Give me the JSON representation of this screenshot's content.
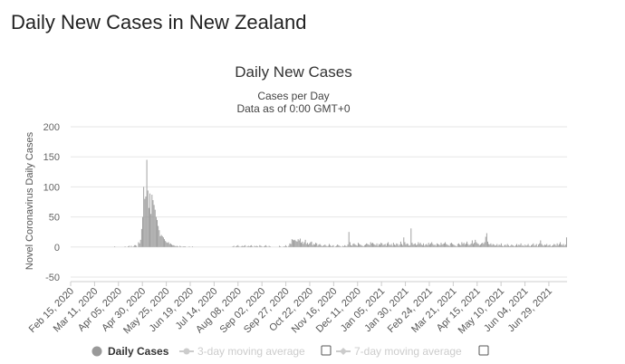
{
  "page": {
    "heading": "Daily New Cases in New Zealand"
  },
  "chart_data": {
    "type": "bar",
    "title": "Daily New Cases",
    "subtitle_line1": "Cases per Day",
    "subtitle_line2": "Data as of 0:00 GMT+0",
    "ylabel": "Novel Coronavirus Daily Cases",
    "xlabel": "",
    "ylim": [
      -50,
      200
    ],
    "yticks": [
      200,
      150,
      100,
      50,
      0,
      -50
    ],
    "grid": true,
    "legend_position": "bottom",
    "color": "#999999",
    "x_start": "2020-02-15",
    "x_end": "2021-07-18",
    "xtick_labels": [
      "Feb 15, 2020",
      "Mar 11, 2020",
      "Apr 05, 2020",
      "Apr 30, 2020",
      "May 25, 2020",
      "Jun 19, 2020",
      "Jul 14, 2020",
      "Aug 08, 2020",
      "Sep 02, 2020",
      "Sep 27, 2020",
      "Oct 22, 2020",
      "Nov 16, 2020",
      "Dec 11, 2020",
      "Jan 05, 2021",
      "Jan 30, 2021",
      "Feb 24, 2021",
      "Mar 21, 2021",
      "Apr 15, 2021",
      "May 10, 2021",
      "Jun 04, 2021",
      "Jun 29, 2021"
    ],
    "series": [
      {
        "name": "Daily Cases",
        "values": [
          0,
          0,
          0,
          0,
          0,
          0,
          0,
          0,
          0,
          0,
          0,
          0,
          0,
          0,
          0,
          0,
          0,
          0,
          0,
          0,
          0,
          0,
          0,
          0,
          0,
          0,
          0,
          0,
          0,
          0,
          0,
          0,
          0,
          0,
          0,
          0,
          0,
          0,
          0,
          0,
          0,
          0,
          1,
          0,
          0,
          0,
          0,
          0,
          0,
          0,
          0,
          0,
          1,
          0,
          0,
          1,
          2,
          0,
          2,
          0,
          1,
          3,
          3,
          2,
          0,
          8,
          6,
          12,
          30,
          50,
          100,
          80,
          84,
          145,
          94,
          65,
          89,
          55,
          87,
          78,
          70,
          62,
          50,
          45,
          35,
          28,
          18,
          20,
          18,
          16,
          13,
          10,
          8,
          7,
          8,
          5,
          6,
          4,
          3,
          3,
          2,
          1,
          2,
          1,
          0,
          2,
          1,
          0,
          1,
          1,
          1,
          0,
          0,
          0,
          1,
          0,
          0,
          1,
          0,
          0,
          0,
          0,
          0,
          0,
          0,
          0,
          0,
          0,
          0,
          0,
          0,
          0,
          0,
          0,
          0,
          0,
          0,
          0,
          0,
          0,
          0,
          0,
          0,
          0,
          0,
          0,
          0,
          0,
          0,
          0,
          0,
          0,
          0,
          0,
          0,
          0,
          1,
          2,
          0,
          1,
          2,
          3,
          1,
          0,
          1,
          2,
          1,
          2,
          3,
          0,
          1,
          2,
          1,
          2,
          3,
          1,
          0,
          2,
          1,
          2,
          1,
          0,
          3,
          2,
          1,
          0,
          1,
          2,
          3,
          1,
          0,
          2,
          1,
          0,
          0,
          0,
          0,
          0,
          0,
          0,
          0,
          2,
          1,
          0,
          0,
          1,
          1,
          3,
          1,
          0,
          2,
          6,
          5,
          13,
          12,
          11,
          12,
          10,
          9,
          13,
          11,
          14,
          7,
          9,
          5,
          8,
          12,
          5,
          7,
          4,
          6,
          8,
          9,
          3,
          5,
          4,
          7,
          6,
          2,
          4,
          5,
          3,
          1,
          2,
          3,
          4,
          2,
          1,
          2,
          5,
          3,
          1,
          2,
          3,
          0,
          1,
          2,
          4,
          3,
          2,
          1,
          0,
          2,
          1,
          3,
          2,
          1,
          4,
          25,
          8,
          3,
          2,
          5,
          6,
          4,
          3,
          2,
          7,
          5,
          4,
          3,
          2,
          1,
          3,
          4,
          6,
          5,
          4,
          3,
          8,
          6,
          7,
          5,
          4,
          3,
          6,
          2,
          5,
          4,
          7,
          6,
          3,
          4,
          5,
          2,
          6,
          8,
          4,
          3,
          5,
          2,
          7,
          4,
          3,
          6,
          5,
          2,
          4,
          9,
          5,
          3,
          16,
          8,
          4,
          6,
          5,
          2,
          3,
          31,
          7,
          4,
          5,
          6,
          3,
          4,
          8,
          5,
          7,
          4,
          3,
          6,
          2,
          4,
          5,
          3,
          7,
          4,
          6,
          8,
          5,
          3,
          4,
          2,
          6,
          5,
          4,
          3,
          7,
          4,
          5,
          6,
          8,
          5,
          4,
          3,
          2,
          6,
          7,
          5,
          4,
          3,
          2,
          1,
          5,
          6,
          4,
          3,
          8,
          5,
          7,
          4,
          6,
          9,
          5,
          3,
          4,
          6,
          11,
          5,
          7,
          12,
          8,
          6,
          5,
          3,
          4,
          6,
          7,
          5,
          8,
          17,
          23,
          9,
          5,
          4,
          6,
          3,
          5,
          4,
          2,
          3,
          5,
          2,
          4,
          3,
          6,
          2,
          1,
          3,
          4,
          2,
          5,
          3,
          1,
          2,
          4,
          3,
          2,
          1,
          3,
          5,
          2,
          4,
          3,
          6,
          2,
          3,
          1,
          4,
          2,
          3,
          5,
          2,
          1,
          3,
          4,
          6,
          2,
          3,
          5,
          1,
          4,
          6,
          11,
          5,
          3,
          2,
          4,
          3,
          5,
          2,
          3,
          4,
          1,
          2,
          3,
          5,
          4,
          2,
          6,
          3,
          5,
          8,
          4,
          3,
          5,
          2,
          4,
          16
        ]
      }
    ],
    "legend": {
      "items": [
        {
          "label": "Daily Cases"
        },
        {
          "label": "3-day moving average"
        },
        {
          "label": "7-day moving average"
        }
      ]
    }
  }
}
